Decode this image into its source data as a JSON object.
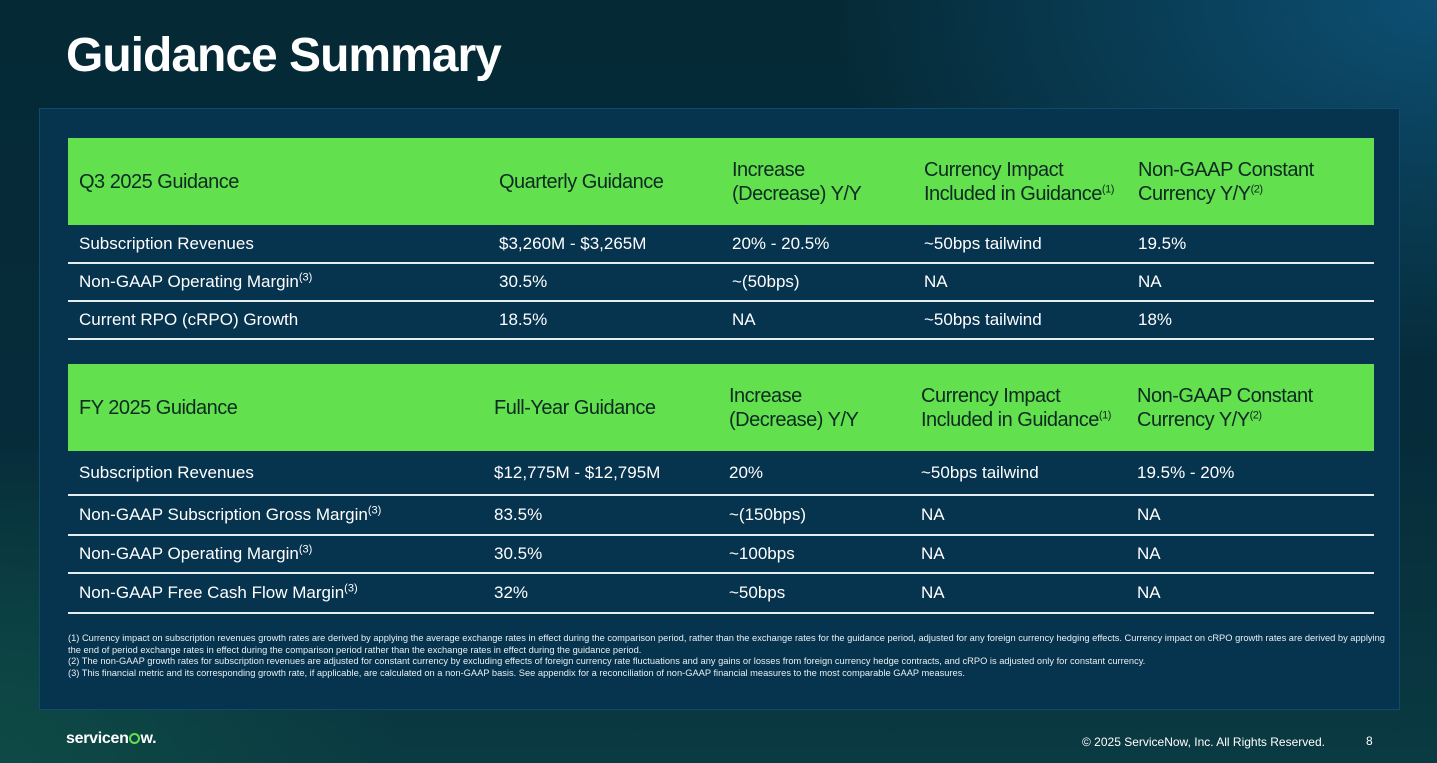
{
  "title": "Guidance Summary",
  "q3": {
    "headers": [
      "Q3 2025 Guidance",
      "Quarterly Guidance",
      "Increase (Decrease) Y/Y",
      "Currency Impact Included in Guidance",
      "Non-GAAP Constant Currency Y/Y"
    ],
    "header_sups": {
      "currency": "(1)",
      "constant": "(2)"
    },
    "rows": [
      {
        "label": "Subscription Revenues",
        "sup": "",
        "cells": [
          "$3,260M - $3,265M",
          "20% - 20.5%",
          "~50bps tailwind",
          "19.5%"
        ]
      },
      {
        "label": "Non-GAAP Operating Margin",
        "sup": "(3)",
        "cells": [
          "30.5%",
          "~(50bps)",
          "NA",
          "NA"
        ]
      },
      {
        "label": "Current RPO (cRPO) Growth",
        "sup": "",
        "cells": [
          "18.5%",
          "NA",
          "~50bps tailwind",
          "18%"
        ]
      }
    ]
  },
  "fy": {
    "headers": [
      "FY 2025 Guidance",
      "Full-Year Guidance",
      "Increase (Decrease) Y/Y",
      "Currency Impact Included in Guidance",
      "Non-GAAP Constant Currency Y/Y"
    ],
    "header_sups": {
      "currency": "(1)",
      "constant": "(2)"
    },
    "rows": [
      {
        "label": "Subscription Revenues",
        "sup": "",
        "cells": [
          "$12,775M - $12,795M",
          "20%",
          "~50bps tailwind",
          "19.5% - 20%"
        ]
      },
      {
        "label": "Non-GAAP Subscription Gross Margin",
        "sup": "(3)",
        "cells": [
          "83.5%",
          "~(150bps)",
          "NA",
          "NA"
        ]
      },
      {
        "label": "Non-GAAP Operating Margin",
        "sup": "(3)",
        "cells": [
          "30.5%",
          "~100bps",
          "NA",
          "NA"
        ]
      },
      {
        "label": "Non-GAAP Free Cash Flow Margin",
        "sup": "(3)",
        "cells": [
          "32%",
          "~50bps",
          "NA",
          "NA"
        ]
      }
    ]
  },
  "footnotes": [
    "(1) Currency impact on subscription revenues growth rates are derived by applying the average exchange rates in effect during the comparison period, rather than the exchange rates for the guidance period, adjusted for any foreign currency hedging effects. Currency impact on cRPO growth rates are derived by applying the end of period exchange rates in effect during the comparison period rather than the exchange rates in effect during the guidance period.",
    "(2) The non-GAAP growth rates for subscription revenues are adjusted for constant currency by excluding effects of foreign currency rate fluctuations and any gains or losses from foreign currency hedge contracts, and cRPO is adjusted only for constant currency.",
    "(3) This financial metric and its corresponding growth rate, if applicable, are calculated on a non-GAAP basis. See appendix for a reconciliation of non-GAAP financial measures to the most comparable GAAP measures."
  ],
  "footer": {
    "logo": "servicenow.",
    "copyright": "© 2025 ServiceNow, Inc. All Rights Reserved.",
    "page": "8"
  },
  "colors": {
    "accent": "#62e04d",
    "panel": "#06334e",
    "background": "#052a36"
  }
}
